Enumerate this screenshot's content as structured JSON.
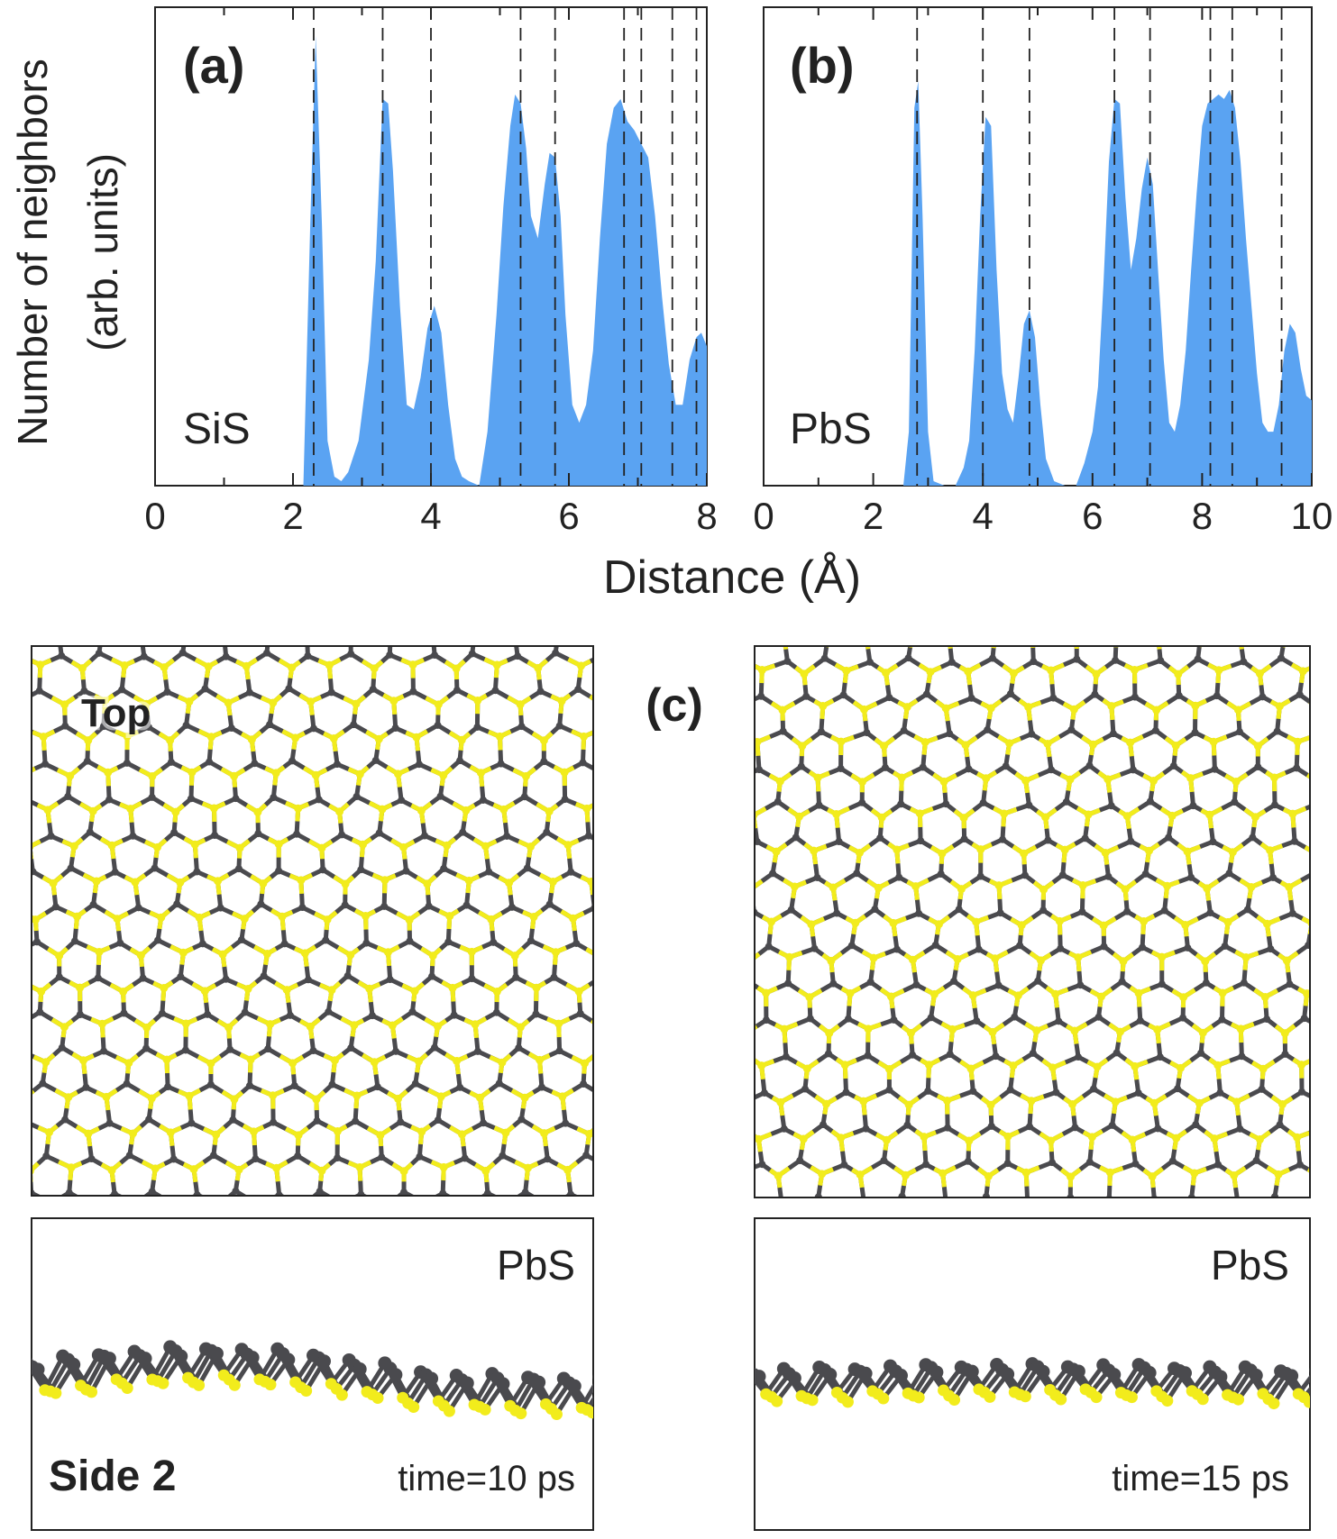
{
  "colors": {
    "fill": "#5aa3f2",
    "sulfur": "#f2ec1c",
    "sulfur_dark": "#c9c30e",
    "metal": "#4a4a4e",
    "frame": "#222222",
    "dash": "#222222"
  },
  "axes": {
    "ylabel_line1": "Number of neighbors",
    "ylabel_line2": "(arb. units)",
    "xlabel": "Distance (Å)"
  },
  "chart_data": [
    {
      "type": "area",
      "panel_label": "(a)",
      "material": "SiS",
      "xlim": [
        0,
        8
      ],
      "ylim": [
        0,
        1
      ],
      "xticks": [
        0,
        2,
        4,
        6,
        8
      ],
      "xtick_labels": [
        "0",
        "2",
        "4",
        "6",
        "8"
      ],
      "dashed_lines": [
        2.3,
        3.3,
        4.0,
        5.3,
        5.8,
        6.8,
        7.05,
        7.5,
        7.85
      ],
      "x": [
        2.15,
        2.25,
        2.33,
        2.42,
        2.5,
        2.6,
        2.7,
        2.8,
        2.95,
        3.1,
        3.2,
        3.3,
        3.38,
        3.45,
        3.55,
        3.65,
        3.75,
        3.85,
        3.95,
        4.05,
        4.15,
        4.25,
        4.35,
        4.45,
        4.55,
        4.7,
        4.82,
        4.95,
        5.05,
        5.15,
        5.22,
        5.3,
        5.38,
        5.45,
        5.55,
        5.65,
        5.72,
        5.8,
        5.88,
        5.95,
        6.05,
        6.15,
        6.25,
        6.35,
        6.45,
        6.55,
        6.65,
        6.75,
        6.85,
        6.95,
        7.05,
        7.15,
        7.25,
        7.35,
        7.45,
        7.55,
        7.65,
        7.75,
        7.85,
        7.92,
        8.0
      ],
      "y": [
        0.0,
        0.58,
        1.0,
        0.58,
        0.1,
        0.02,
        0.01,
        0.03,
        0.1,
        0.28,
        0.5,
        0.86,
        0.85,
        0.7,
        0.4,
        0.18,
        0.17,
        0.24,
        0.35,
        0.4,
        0.34,
        0.18,
        0.06,
        0.02,
        0.01,
        0.0,
        0.12,
        0.38,
        0.62,
        0.8,
        0.87,
        0.85,
        0.75,
        0.6,
        0.55,
        0.67,
        0.74,
        0.73,
        0.6,
        0.38,
        0.18,
        0.14,
        0.18,
        0.3,
        0.55,
        0.76,
        0.84,
        0.86,
        0.81,
        0.79,
        0.76,
        0.73,
        0.6,
        0.42,
        0.27,
        0.18,
        0.18,
        0.28,
        0.33,
        0.34,
        0.31
      ]
    },
    {
      "type": "area",
      "panel_label": "(b)",
      "material": "PbS",
      "xlim": [
        0,
        10
      ],
      "ylim": [
        0,
        1
      ],
      "xticks": [
        0,
        2,
        4,
        6,
        8,
        10
      ],
      "xtick_labels": [
        "0",
        "2",
        "4",
        "6",
        "8",
        "10"
      ],
      "dashed_lines": [
        2.8,
        4.0,
        4.85,
        6.4,
        7.05,
        8.15,
        8.55,
        9.45
      ],
      "x": [
        2.55,
        2.65,
        2.75,
        2.82,
        2.9,
        3.0,
        3.1,
        3.3,
        3.5,
        3.65,
        3.75,
        3.85,
        3.95,
        4.05,
        4.15,
        4.25,
        4.35,
        4.45,
        4.55,
        4.65,
        4.75,
        4.85,
        4.95,
        5.05,
        5.15,
        5.3,
        5.5,
        5.7,
        5.85,
        6.0,
        6.1,
        6.2,
        6.3,
        6.4,
        6.5,
        6.6,
        6.7,
        6.8,
        6.9,
        7.0,
        7.1,
        7.2,
        7.3,
        7.4,
        7.5,
        7.6,
        7.7,
        7.8,
        7.9,
        8.0,
        8.1,
        8.2,
        8.3,
        8.4,
        8.5,
        8.6,
        8.7,
        8.8,
        8.9,
        9.0,
        9.1,
        9.2,
        9.3,
        9.4,
        9.5,
        9.6,
        9.7,
        9.8,
        9.9,
        10.0
      ],
      "y": [
        0.0,
        0.12,
        0.84,
        0.9,
        0.6,
        0.12,
        0.01,
        0.0,
        0.0,
        0.04,
        0.1,
        0.3,
        0.6,
        0.82,
        0.8,
        0.48,
        0.25,
        0.17,
        0.14,
        0.24,
        0.36,
        0.39,
        0.33,
        0.18,
        0.06,
        0.01,
        0.0,
        0.0,
        0.05,
        0.12,
        0.22,
        0.45,
        0.72,
        0.86,
        0.85,
        0.64,
        0.48,
        0.55,
        0.66,
        0.73,
        0.67,
        0.47,
        0.28,
        0.14,
        0.12,
        0.18,
        0.3,
        0.48,
        0.65,
        0.8,
        0.85,
        0.86,
        0.87,
        0.86,
        0.88,
        0.84,
        0.72,
        0.55,
        0.4,
        0.25,
        0.14,
        0.12,
        0.12,
        0.18,
        0.3,
        0.36,
        0.34,
        0.26,
        0.2,
        0.19
      ]
    }
  ],
  "structures": {
    "panel_label": "(c)",
    "top_label": "Top",
    "side_label": "Side 2",
    "left": {
      "material": "PbS",
      "time": "time=10 ps"
    },
    "right": {
      "material": "PbS",
      "time": "time=15 ps"
    }
  }
}
